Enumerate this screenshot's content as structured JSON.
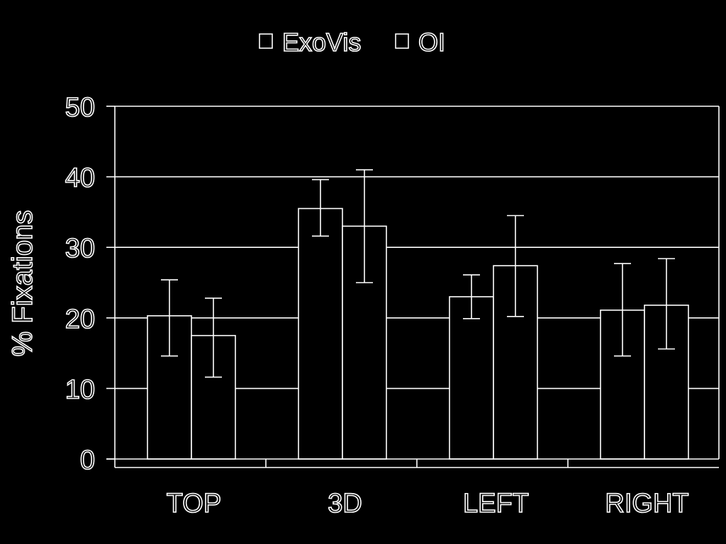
{
  "chart_data": {
    "type": "bar",
    "title": "",
    "xlabel": "",
    "ylabel": "% Fixations",
    "categories": [
      "TOP",
      "3D",
      "LEFT",
      "RIGHT"
    ],
    "ylim": [
      0,
      50
    ],
    "yticks": [
      "0",
      "10",
      "20",
      "30",
      "40",
      "50"
    ],
    "grid": true,
    "legend_position": "top-center",
    "series": [
      {
        "name": "ExoVis",
        "values": [
          20.3,
          35.5,
          23.0,
          21.1
        ],
        "error_low": [
          14.6,
          31.6,
          19.9,
          14.6
        ],
        "error_high": [
          25.4,
          39.6,
          26.1,
          27.7
        ]
      },
      {
        "name": "OI",
        "values": [
          17.5,
          33.0,
          27.4,
          21.8
        ],
        "error_low": [
          11.6,
          25.0,
          20.2,
          15.6
        ],
        "error_high": [
          22.8,
          41.0,
          34.5,
          28.4
        ]
      }
    ]
  },
  "colors": {
    "background": "#000000",
    "foreground": "#ffffff"
  }
}
